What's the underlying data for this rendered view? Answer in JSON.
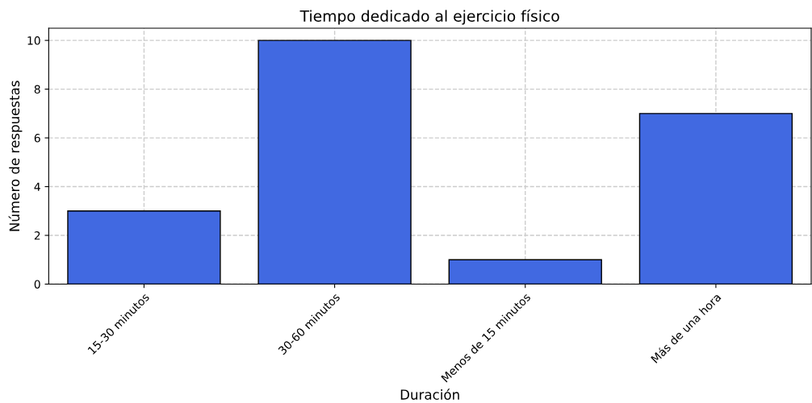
{
  "chart_data": {
    "type": "bar",
    "title": "Tiempo dedicado al ejercicio físico",
    "xlabel": "Duración",
    "ylabel": "Número de respuestas",
    "categories": [
      "15-30 minutos",
      "30-60 minutos",
      "Menos de 15 minutos",
      "Más de una hora"
    ],
    "values": [
      3,
      10,
      1,
      7
    ],
    "color": "#4169e1",
    "ylim": [
      0,
      10.5
    ],
    "yticks": [
      0,
      2,
      4,
      6,
      8,
      10
    ],
    "grid": true
  }
}
